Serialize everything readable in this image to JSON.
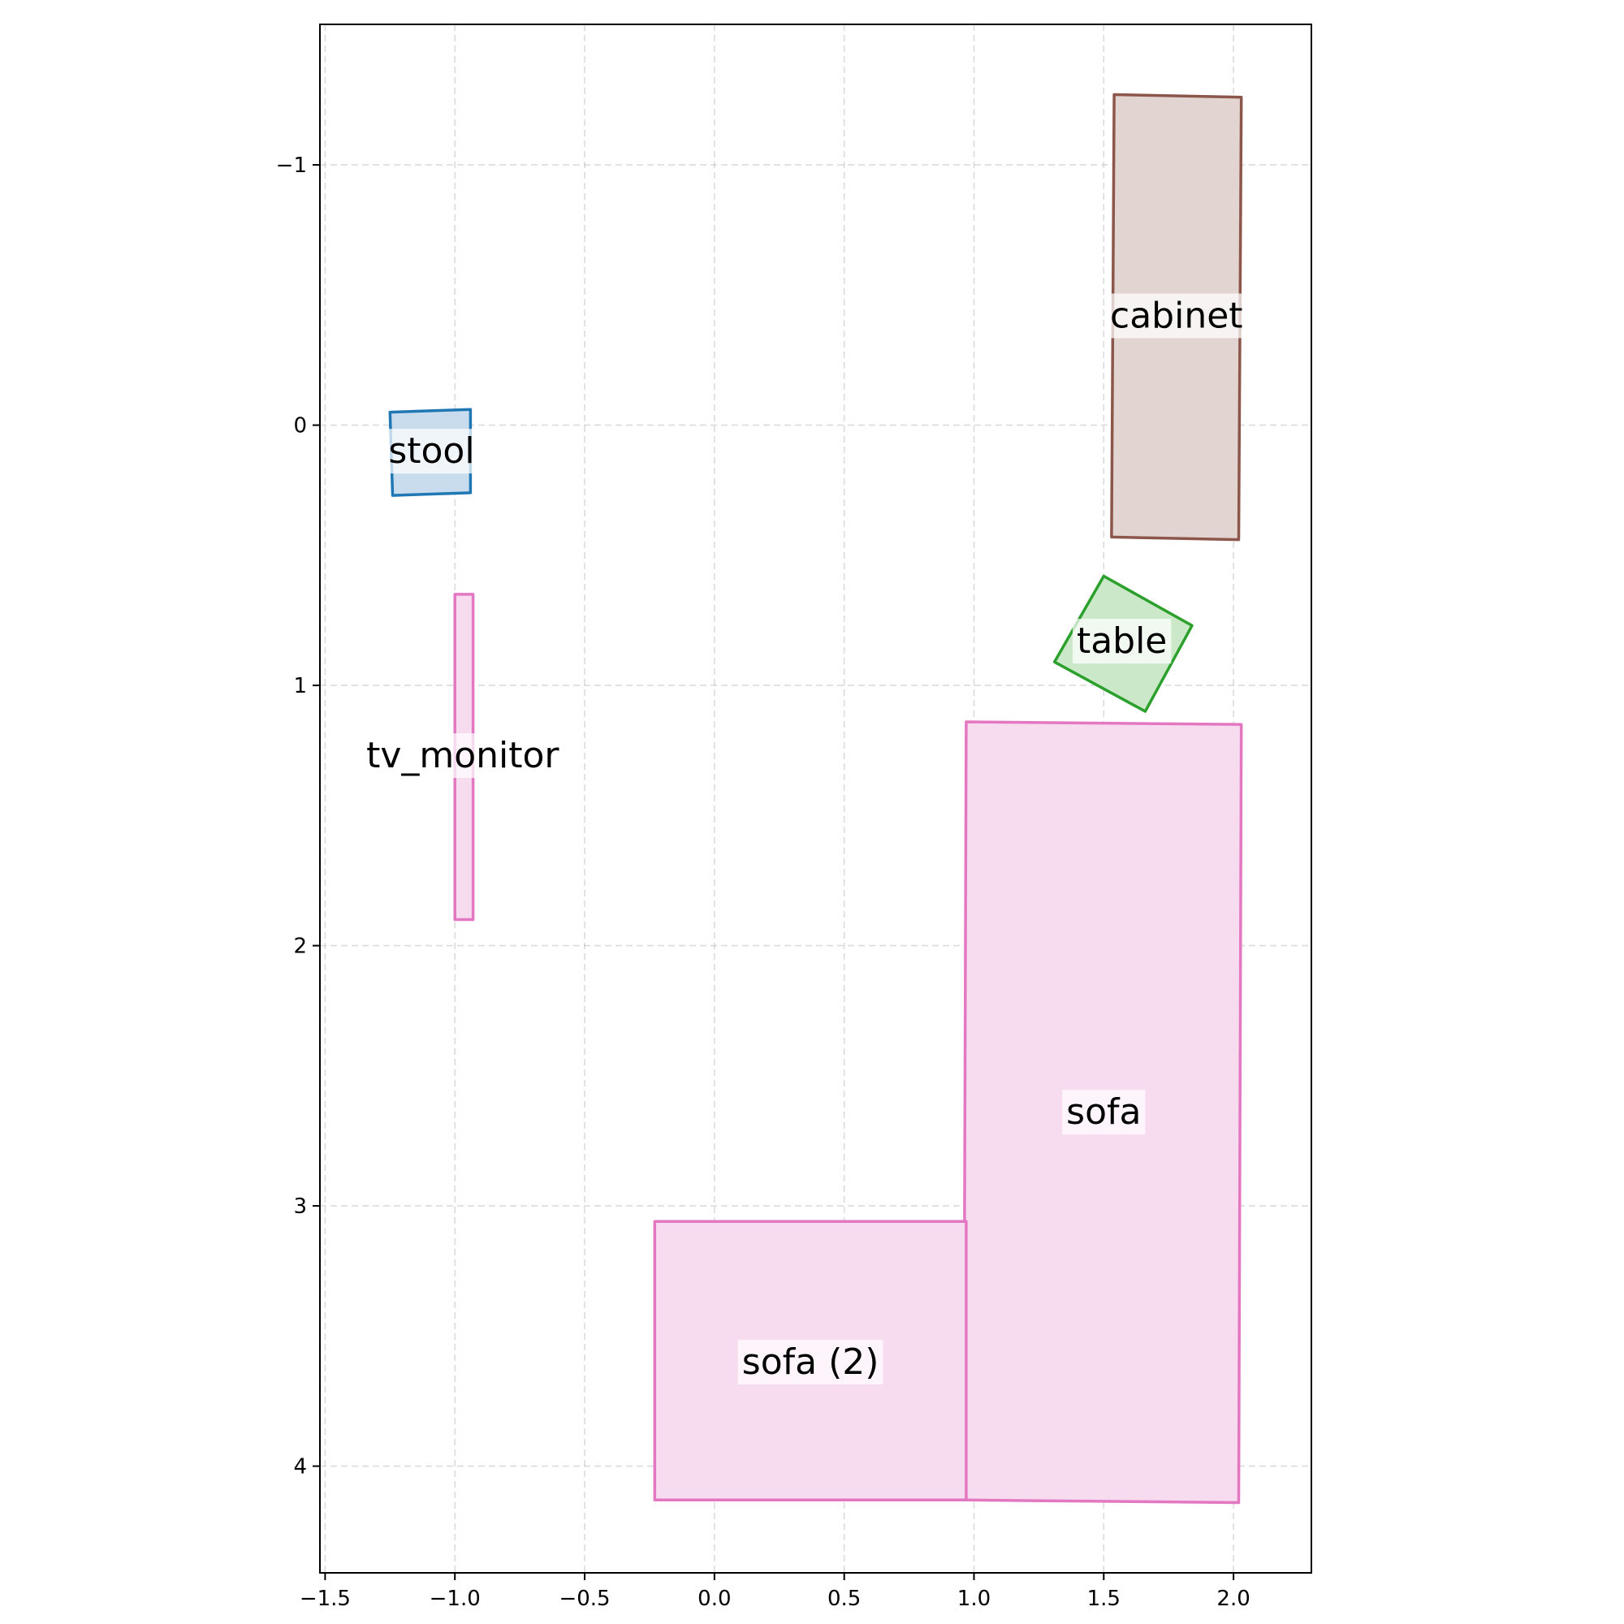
{
  "chart_data": {
    "type": "floor-plan",
    "title": "",
    "xlabel": "",
    "ylabel": "",
    "xlim": [
      -1.52,
      2.3
    ],
    "ylim": [
      4.41,
      -1.54
    ],
    "y_inverted": true,
    "grid": true,
    "x_ticks": [
      -1.5,
      -1.0,
      -0.5,
      0.0,
      0.5,
      1.0,
      1.5,
      2.0
    ],
    "x_tick_labels": [
      "−1.5",
      "−1.0",
      "−0.5",
      "0.0",
      "0.5",
      "1.0",
      "1.5",
      "2.0"
    ],
    "y_ticks": [
      -1,
      0,
      1,
      2,
      3,
      4
    ],
    "y_tick_labels": [
      "−1",
      "0",
      "1",
      "2",
      "3",
      "4"
    ],
    "objects": [
      {
        "name": "cabinet",
        "label": "cabinet",
        "edge_color": "#8c564b",
        "fill_color": "#e2d4d1",
        "corners": [
          [
            1.54,
            -1.27
          ],
          [
            2.03,
            -1.26
          ],
          [
            2.02,
            0.44
          ],
          [
            1.53,
            0.43
          ]
        ],
        "label_pos": [
          1.78,
          -0.42
        ]
      },
      {
        "name": "stool",
        "label": "stool",
        "edge_color": "#1f77b4",
        "fill_color": "#c9dcee",
        "corners": [
          [
            -1.25,
            -0.05
          ],
          [
            -0.94,
            -0.06
          ],
          [
            -0.94,
            0.26
          ],
          [
            -1.24,
            0.27
          ]
        ],
        "label_pos": [
          -1.09,
          0.1
        ]
      },
      {
        "name": "tv_monitor",
        "label": "tv_monitor",
        "edge_color": "#e377c2",
        "fill_color": "#f7dbef",
        "corners": [
          [
            -1.0,
            0.65
          ],
          [
            -0.93,
            0.65
          ],
          [
            -0.93,
            1.9
          ],
          [
            -1.0,
            1.9
          ]
        ],
        "label_pos": [
          -0.97,
          1.27
        ]
      },
      {
        "name": "table",
        "label": "table",
        "edge_color": "#2ca02c",
        "fill_color": "#cbe8c9",
        "corners": [
          [
            1.5,
            0.58
          ],
          [
            1.84,
            0.77
          ],
          [
            1.66,
            1.1
          ],
          [
            1.31,
            0.91
          ]
        ],
        "label_pos": [
          1.57,
          0.83
        ]
      },
      {
        "name": "sofa",
        "label": "sofa",
        "edge_color": "#e377c2",
        "fill_color": "#f7dbef",
        "corners": [
          [
            0.97,
            1.14
          ],
          [
            2.03,
            1.15
          ],
          [
            2.02,
            4.14
          ],
          [
            0.96,
            4.13
          ]
        ],
        "label_pos": [
          1.5,
          2.64
        ]
      },
      {
        "name": "sofa-2",
        "label": "sofa (2)",
        "edge_color": "#e377c2",
        "fill_color": "#f7dbef",
        "corners": [
          [
            -0.23,
            3.06
          ],
          [
            0.97,
            3.06
          ],
          [
            0.97,
            4.13
          ],
          [
            -0.23,
            4.13
          ]
        ],
        "label_pos": [
          0.37,
          3.6
        ]
      }
    ]
  }
}
